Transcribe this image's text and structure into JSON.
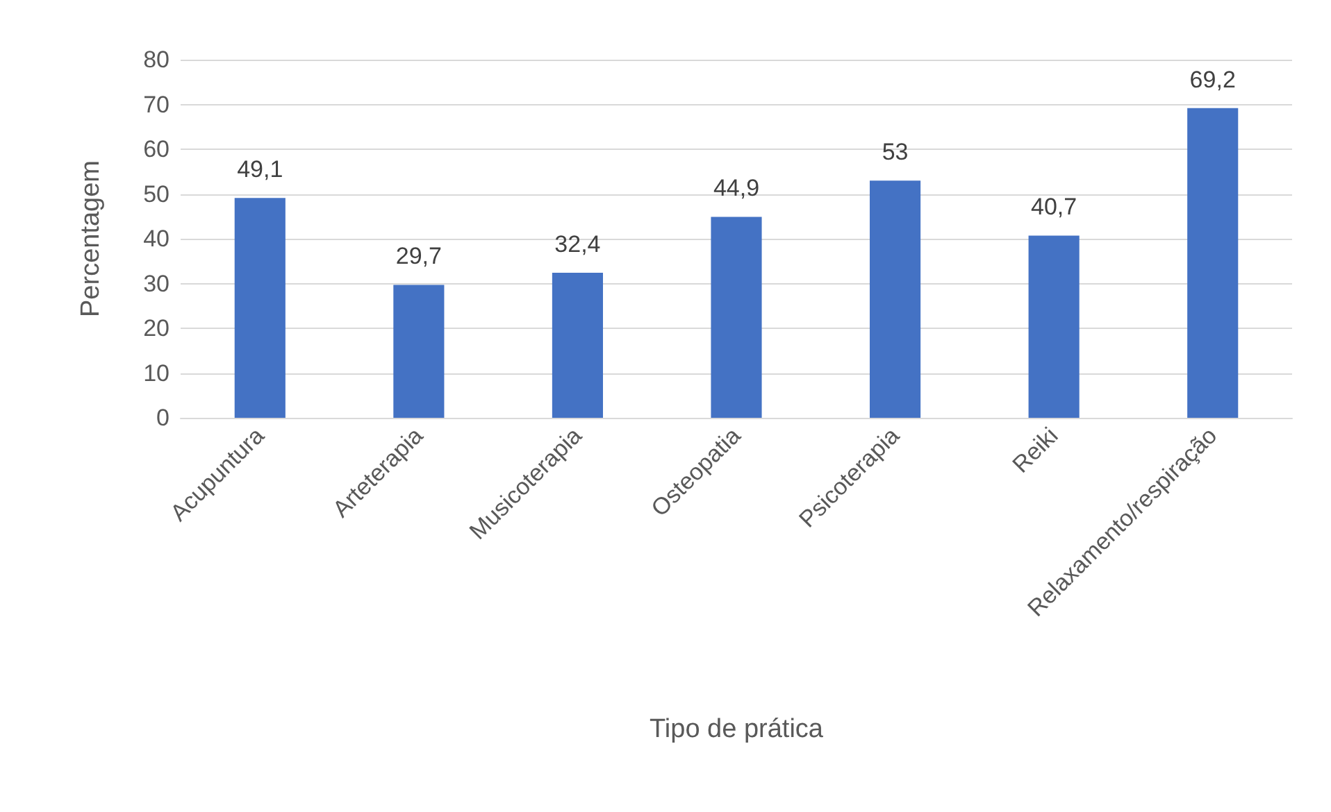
{
  "chart_data": {
    "type": "bar",
    "xlabel": "Tipo de prática",
    "ylabel": "Percentagem",
    "categories": [
      "Acupuntura",
      "Arteterapia",
      "Musicoterapia",
      "Osteopatia",
      "Psicoterapia",
      "Reiki",
      "Relaxamento/respiração"
    ],
    "values": [
      49.1,
      29.7,
      32.4,
      44.9,
      53,
      40.7,
      69.2
    ],
    "value_labels": [
      "49,1",
      "29,7",
      "32,4",
      "44,9",
      "53",
      "40,7",
      "69,2"
    ],
    "color": "#4472c4",
    "ylim": [
      0,
      80
    ],
    "yticks": [
      0,
      10,
      20,
      30,
      40,
      50,
      60,
      70,
      80
    ],
    "grid": "y"
  }
}
